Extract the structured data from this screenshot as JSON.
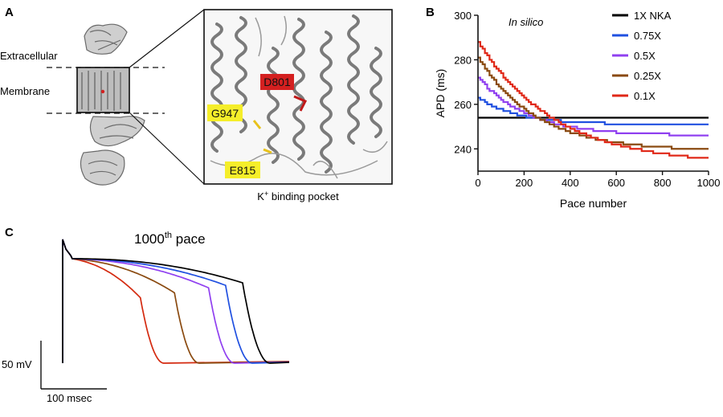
{
  "panel_a": {
    "letter": "A",
    "labels": {
      "extracellular": "Extracellular",
      "membrane": "Membrane"
    },
    "residues": {
      "d801": "D801",
      "g947": "G947",
      "e815": "E815"
    },
    "caption": "K",
    "caption_sup": "+",
    "caption_rest": " binding pocket",
    "colors": {
      "residue_red": "#d42020",
      "residue_yellow": "#f5ee2a",
      "protein_gray": "#8a8a8a"
    }
  },
  "panel_b": {
    "letter": "B",
    "annotation": "In silico"
  },
  "panel_c": {
    "letter": "C",
    "title_pre": "1000",
    "title_sup": "th",
    "title_post": " pace",
    "scale_v": "50 mV",
    "scale_t": "100 msec"
  },
  "chart_data": [
    {
      "type": "line",
      "xlabel": "Pace number",
      "ylabel": "APD (ms)",
      "xlim": [
        0,
        1000
      ],
      "ylim": [
        230,
        300
      ],
      "xticks": [
        0,
        200,
        400,
        600,
        800,
        1000
      ],
      "yticks": [
        240,
        260,
        280,
        300
      ],
      "legend_position": "right",
      "series": [
        {
          "name": "1X NKA",
          "color": "#000000",
          "start": 254,
          "end": 254,
          "tau": 150
        },
        {
          "name": "0.75X",
          "color": "#2050e0",
          "start": 263,
          "end": 251,
          "tau": 170
        },
        {
          "name": "0.5X",
          "color": "#9040f0",
          "start": 272,
          "end": 246,
          "tau": 210
        },
        {
          "name": "0.25X",
          "color": "#8a4a10",
          "start": 281,
          "end": 239,
          "tau": 250
        },
        {
          "name": "0.1X",
          "color": "#e02818",
          "start": 288,
          "end": 233,
          "tau": 330
        }
      ]
    },
    {
      "type": "line",
      "series": [
        {
          "color": "#d42a10",
          "plateau": 0.4
        },
        {
          "color": "#8a4a10",
          "plateau": 0.6
        },
        {
          "color": "#9040f0",
          "plateau": 0.8
        },
        {
          "color": "#2050e0",
          "plateau": 0.9
        },
        {
          "color": "#000000",
          "plateau": 1.0
        }
      ]
    }
  ]
}
